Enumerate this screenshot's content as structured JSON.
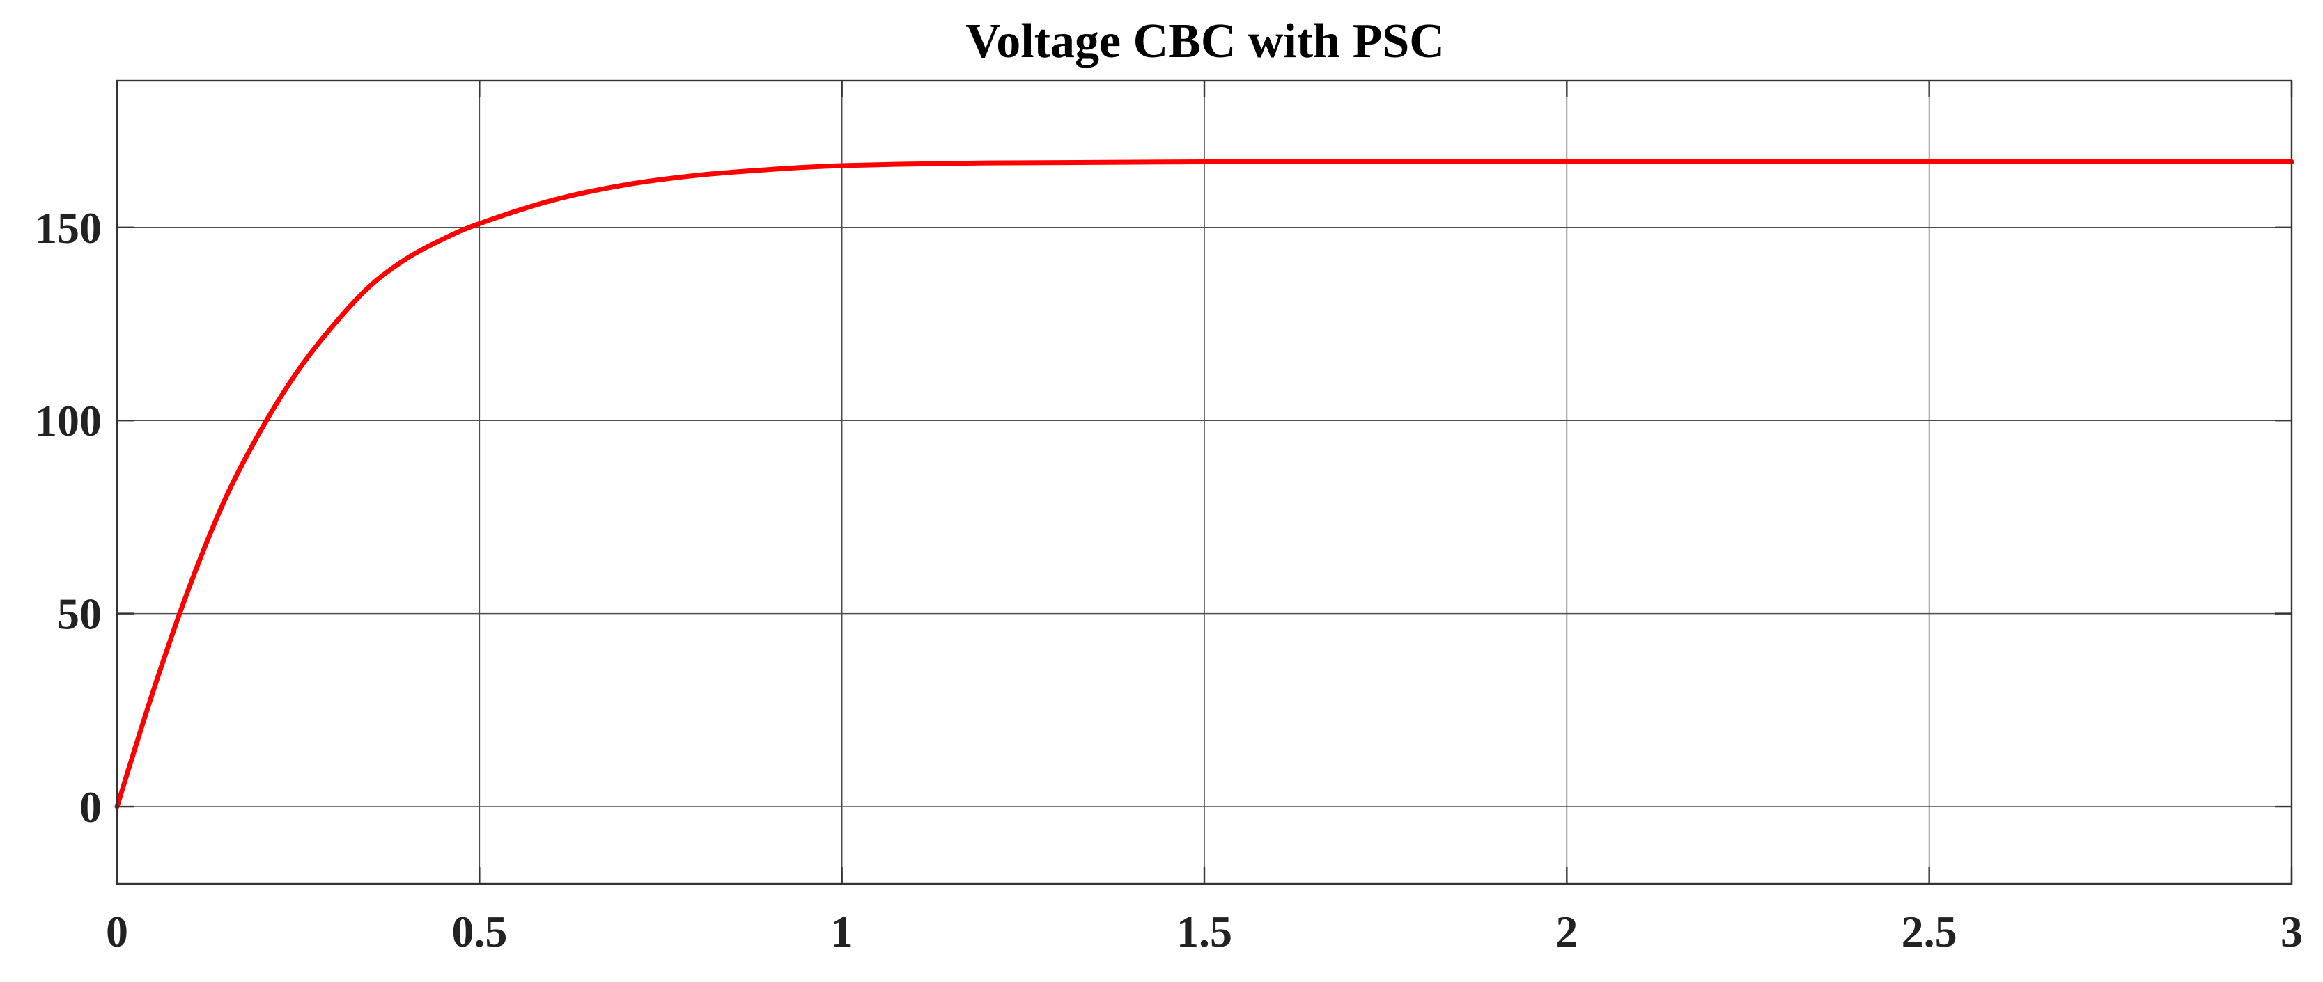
{
  "chart_data": {
    "type": "line",
    "title": "Voltage CBC with PSC",
    "xlabel": "",
    "ylabel": "",
    "xlim": [
      0,
      3
    ],
    "ylim": [
      -20,
      188
    ],
    "x_ticks": [
      0,
      0.5,
      1,
      1.5,
      2,
      2.5,
      3
    ],
    "x_tick_labels": [
      "0",
      "0.5",
      "1",
      "1.5",
      "2",
      "2.5",
      "3"
    ],
    "y_ticks": [
      0,
      50,
      100,
      150
    ],
    "y_tick_labels": [
      "0",
      "50",
      "100",
      "150"
    ],
    "grid": true,
    "legend": "none",
    "series": [
      {
        "color": "#ff0000",
        "x": [
          0,
          0.05,
          0.1,
          0.15,
          0.2,
          0.25,
          0.3,
          0.35,
          0.4,
          0.45,
          0.5,
          0.6,
          0.7,
          0.8,
          0.9,
          1,
          1.2,
          1.5,
          2,
          2.5,
          3
        ],
        "y": [
          0,
          30,
          57,
          80,
          98,
          113,
          125,
          135,
          142,
          147,
          151,
          157,
          161,
          163.5,
          165,
          166,
          166.7,
          167,
          167,
          167,
          167
        ]
      }
    ]
  }
}
